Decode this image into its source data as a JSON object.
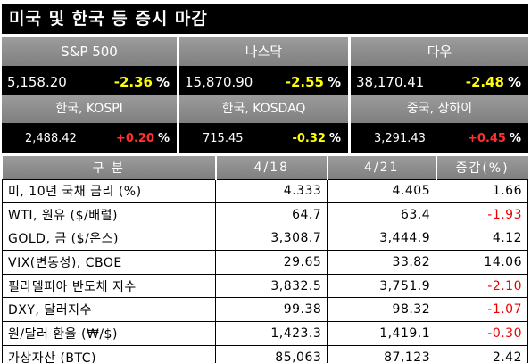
{
  "title": "미국 및 한국 등 증시 마감",
  "us_indices": [
    {
      "name": "S&P 500",
      "value": "5,158.20",
      "change": "-2.36",
      "pct": "%",
      "color": "#ffff00"
    },
    {
      "name": "나스닥",
      "value": "15,870.90",
      "change": "-2.55",
      "pct": "%",
      "color": "#ffff00"
    },
    {
      "name": "다우",
      "value": "38,170.41",
      "change": "-2.48",
      "pct": "%",
      "color": "#ffff00"
    }
  ],
  "asia_indices": [
    {
      "name": "한국, KOSPI",
      "value": "2,488.42",
      "change": "+0.20",
      "pct": "%",
      "color": "#ff3030"
    },
    {
      "name": "한국, KOSDAQ",
      "value": "715.45",
      "change": "-0.32",
      "pct": "%",
      "color": "#ffff00"
    },
    {
      "name": "중국, 상하이",
      "value": "3,291.43",
      "change": "+0.45",
      "pct": "%",
      "color": "#ff3030"
    }
  ],
  "table": {
    "headers": [
      "구 분",
      "4/18",
      "4/21",
      "증감(%)"
    ],
    "rows": [
      {
        "label": "미, 10년 국채 금리 (%)",
        "d1": "4.333",
        "d2": "4.405",
        "chg": "1.66",
        "down": false
      },
      {
        "label": "WTI, 원유 ($/배럴)",
        "d1": "64.7",
        "d2": "63.4",
        "chg": "-1.93",
        "down": true
      },
      {
        "label": "GOLD, 금 ($/온스)",
        "d1": "3,308.7",
        "d2": "3,444.9",
        "chg": "4.12",
        "down": false
      },
      {
        "label": "VIX(변동성), CBOE",
        "d1": "29.65",
        "d2": "33.82",
        "chg": "14.06",
        "down": false
      },
      {
        "label": "필라델피아 반도체 지수",
        "d1": "3,832.5",
        "d2": "3,751.9",
        "chg": "-2.10",
        "down": true
      },
      {
        "label": "DXY, 달러지수",
        "d1": "99.38",
        "d2": "98.32",
        "chg": "-1.07",
        "down": true
      },
      {
        "label": "원/달러 환율 (₩/$)",
        "d1": "1,423.3",
        "d2": "1,419.1",
        "chg": "-0.30",
        "down": true
      },
      {
        "label": "가상자산 (BTC)",
        "d1": "85,063",
        "d2": "87,123",
        "chg": "2.42",
        "down": false
      }
    ]
  }
}
